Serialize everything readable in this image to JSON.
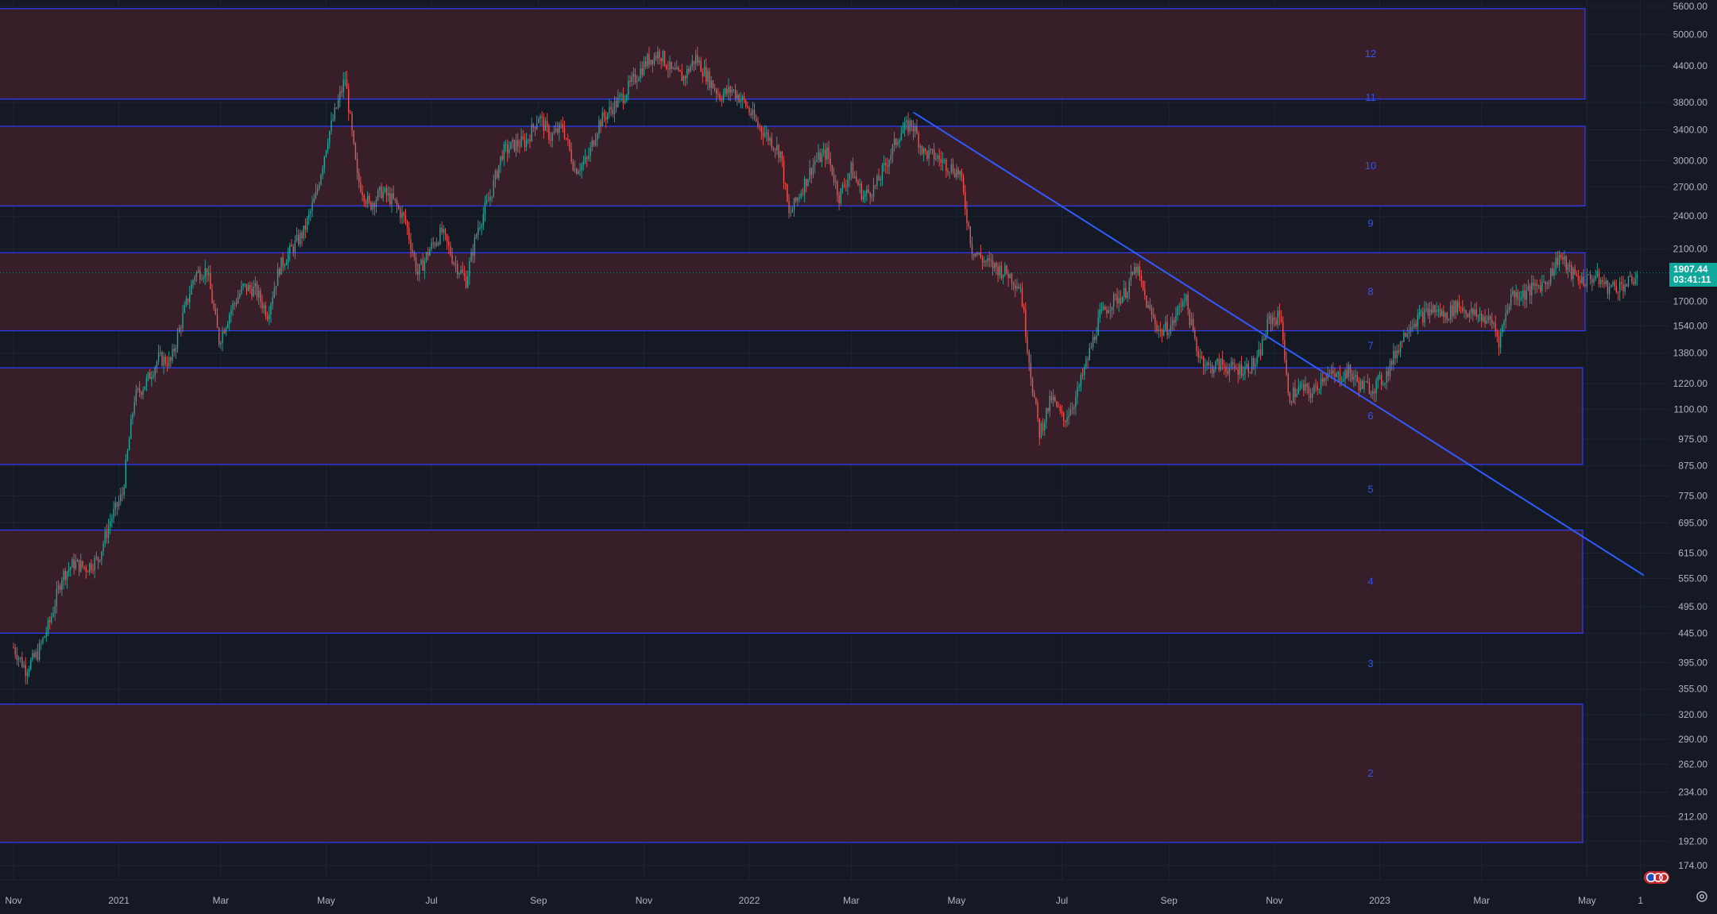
{
  "colors": {
    "background": "#151924",
    "grid": "#1f2433",
    "zone_fill": "#3c1f29",
    "zone_border": "#2f3cff",
    "zone_label": "#3552e8",
    "trendline": "#2f5cff",
    "candle_up": "#26a69a",
    "candle_down": "#ef5350",
    "axis_text": "#b2b5be",
    "last_price_bg": "#0fa89d"
  },
  "last_price": {
    "value": "1907.44",
    "countdown": "03:41:11"
  },
  "chart_data": {
    "type": "candlestick",
    "scale": "log",
    "y_ticks": [
      5600,
      5000,
      4400,
      3800,
      3400,
      3000,
      2700,
      2400,
      2100,
      1700,
      1540,
      1380,
      1220,
      1100,
      975,
      875,
      775,
      695,
      615,
      555,
      495,
      445,
      395,
      355,
      320,
      290,
      262,
      234,
      212,
      192,
      174
    ],
    "y_tick_labels": [
      "5600.00",
      "5000.00",
      "4400.00",
      "3800.00",
      "3400.00",
      "3000.00",
      "2700.00",
      "2400.00",
      "2100.00",
      "1700.00",
      "1540.00",
      "1380.00",
      "1220.00",
      "1100.00",
      "975.00",
      "875.00",
      "775.00",
      "695.00",
      "615.00",
      "555.00",
      "495.00",
      "445.00",
      "395.00",
      "355.00",
      "320.00",
      "290.00",
      "262.00",
      "234.00",
      "212.00",
      "192.00",
      "174.00"
    ],
    "x_ticks": [
      {
        "label": "Nov",
        "date": "2020-11-01"
      },
      {
        "label": "2021",
        "date": "2021-01-01"
      },
      {
        "label": "Mar",
        "date": "2021-03-01"
      },
      {
        "label": "May",
        "date": "2021-05-01"
      },
      {
        "label": "Jul",
        "date": "2021-07-01"
      },
      {
        "label": "Sep",
        "date": "2021-09-01"
      },
      {
        "label": "Nov",
        "date": "2021-11-01"
      },
      {
        "label": "2022",
        "date": "2022-01-01"
      },
      {
        "label": "Mar",
        "date": "2022-03-01"
      },
      {
        "label": "May",
        "date": "2022-05-01"
      },
      {
        "label": "Jul",
        "date": "2022-07-01"
      },
      {
        "label": "Sep",
        "date": "2022-09-01"
      },
      {
        "label": "Nov",
        "date": "2022-11-01"
      },
      {
        "label": "2023",
        "date": "2023-01-01"
      },
      {
        "label": "Mar",
        "date": "2023-03-01"
      },
      {
        "label": "May",
        "date": "2023-05-01"
      },
      {
        "label": "1",
        "date": "2023-06-01"
      }
    ],
    "x_range": [
      "2020-11-01",
      "2023-06-01"
    ],
    "zones": [
      {
        "label": "12",
        "low": 3850,
        "high": 5550
      },
      {
        "label": "10",
        "low": 2500,
        "high": 3450
      },
      {
        "label": "8",
        "low": 1510,
        "high": 2070
      },
      {
        "label": "6",
        "low": 880,
        "high": 1300
      },
      {
        "label": "4",
        "low": 445,
        "high": 675
      },
      {
        "label": "2",
        "low": 191,
        "high": 334
      }
    ],
    "gap_labels": [
      {
        "label": "11",
        "price": 3870
      },
      {
        "label": "9",
        "price": 2330
      },
      {
        "label": "7",
        "price": 1420
      },
      {
        "label": "5",
        "price": 795
      },
      {
        "label": "3",
        "price": 393
      }
    ],
    "trendline": {
      "start": {
        "date": "2022-04-06",
        "price": 3650
      },
      "end": {
        "date": "2023-06-03",
        "price": 562
      }
    },
    "price_path": [
      [
        "2020-11-01",
        420
      ],
      [
        "2020-11-08",
        385
      ],
      [
        "2020-11-15",
        410
      ],
      [
        "2020-11-22",
        465
      ],
      [
        "2020-11-29",
        560
      ],
      [
        "2020-12-06",
        590
      ],
      [
        "2020-12-13",
        580
      ],
      [
        "2020-12-20",
        600
      ],
      [
        "2020-12-27",
        700
      ],
      [
        "2021-01-03",
        780
      ],
      [
        "2021-01-10",
        1150
      ],
      [
        "2021-01-17",
        1230
      ],
      [
        "2021-01-24",
        1350
      ],
      [
        "2021-01-31",
        1330
      ],
      [
        "2021-02-07",
        1600
      ],
      [
        "2021-02-14",
        1900
      ],
      [
        "2021-02-21",
        1930
      ],
      [
        "2021-02-28",
        1450
      ],
      [
        "2021-03-07",
        1650
      ],
      [
        "2021-03-14",
        1800
      ],
      [
        "2021-03-21",
        1780
      ],
      [
        "2021-03-28",
        1620
      ],
      [
        "2021-04-04",
        1950
      ],
      [
        "2021-04-11",
        2100
      ],
      [
        "2021-04-18",
        2250
      ],
      [
        "2021-04-25",
        2600
      ],
      [
        "2021-05-02",
        3300
      ],
      [
        "2021-05-09",
        3900
      ],
      [
        "2021-05-12",
        4200
      ],
      [
        "2021-05-19",
        2800
      ],
      [
        "2021-05-26",
        2500
      ],
      [
        "2021-06-02",
        2650
      ],
      [
        "2021-06-09",
        2550
      ],
      [
        "2021-06-16",
        2350
      ],
      [
        "2021-06-23",
        1900
      ],
      [
        "2021-06-30",
        2100
      ],
      [
        "2021-07-07",
        2250
      ],
      [
        "2021-07-14",
        2000
      ],
      [
        "2021-07-21",
        1850
      ],
      [
        "2021-07-28",
        2300
      ],
      [
        "2021-08-04",
        2600
      ],
      [
        "2021-08-11",
        3100
      ],
      [
        "2021-08-18",
        3200
      ],
      [
        "2021-08-25",
        3250
      ],
      [
        "2021-09-01",
        3600
      ],
      [
        "2021-09-08",
        3300
      ],
      [
        "2021-09-15",
        3450
      ],
      [
        "2021-09-22",
        2900
      ],
      [
        "2021-09-29",
        3000
      ],
      [
        "2021-10-06",
        3500
      ],
      [
        "2021-10-13",
        3700
      ],
      [
        "2021-10-20",
        3900
      ],
      [
        "2021-10-27",
        4200
      ],
      [
        "2021-11-03",
        4500
      ],
      [
        "2021-11-10",
        4650
      ],
      [
        "2021-11-17",
        4300
      ],
      [
        "2021-11-24",
        4200
      ],
      [
        "2021-12-01",
        4550
      ],
      [
        "2021-12-08",
        4200
      ],
      [
        "2021-12-15",
        3900
      ],
      [
        "2021-12-22",
        4000
      ],
      [
        "2021-12-29",
        3800
      ],
      [
        "2022-01-05",
        3500
      ],
      [
        "2022-01-12",
        3300
      ],
      [
        "2022-01-19",
        3100
      ],
      [
        "2022-01-24",
        2400
      ],
      [
        "2022-02-01",
        2700
      ],
      [
        "2022-02-08",
        3000
      ],
      [
        "2022-02-15",
        3100
      ],
      [
        "2022-02-22",
        2600
      ],
      [
        "2022-03-01",
        2900
      ],
      [
        "2022-03-08",
        2600
      ],
      [
        "2022-03-15",
        2700
      ],
      [
        "2022-03-22",
        3000
      ],
      [
        "2022-03-29",
        3350
      ],
      [
        "2022-04-05",
        3500
      ],
      [
        "2022-04-12",
        3100
      ],
      [
        "2022-04-19",
        3050
      ],
      [
        "2022-04-26",
        2950
      ],
      [
        "2022-05-03",
        2850
      ],
      [
        "2022-05-10",
        2100
      ],
      [
        "2022-05-17",
        2000
      ],
      [
        "2022-05-24",
        1950
      ],
      [
        "2022-05-31",
        1900
      ],
      [
        "2022-06-07",
        1800
      ],
      [
        "2022-06-14",
        1200
      ],
      [
        "2022-06-18",
        1000
      ],
      [
        "2022-06-25",
        1150
      ],
      [
        "2022-07-02",
        1050
      ],
      [
        "2022-07-09",
        1150
      ],
      [
        "2022-07-16",
        1350
      ],
      [
        "2022-07-23",
        1600
      ],
      [
        "2022-07-30",
        1700
      ],
      [
        "2022-08-06",
        1750
      ],
      [
        "2022-08-13",
        1950
      ],
      [
        "2022-08-20",
        1650
      ],
      [
        "2022-08-27",
        1500
      ],
      [
        "2022-09-03",
        1550
      ],
      [
        "2022-09-10",
        1750
      ],
      [
        "2022-09-17",
        1400
      ],
      [
        "2022-09-24",
        1300
      ],
      [
        "2022-10-01",
        1320
      ],
      [
        "2022-10-08",
        1290
      ],
      [
        "2022-10-15",
        1300
      ],
      [
        "2022-10-22",
        1330
      ],
      [
        "2022-10-29",
        1580
      ],
      [
        "2022-11-05",
        1600
      ],
      [
        "2022-11-09",
        1150
      ],
      [
        "2022-11-16",
        1200
      ],
      [
        "2022-11-23",
        1170
      ],
      [
        "2022-11-30",
        1270
      ],
      [
        "2022-12-07",
        1250
      ],
      [
        "2022-12-14",
        1280
      ],
      [
        "2022-12-21",
        1210
      ],
      [
        "2022-12-28",
        1200
      ],
      [
        "2023-01-04",
        1250
      ],
      [
        "2023-01-11",
        1400
      ],
      [
        "2023-01-18",
        1550
      ],
      [
        "2023-01-25",
        1600
      ],
      [
        "2023-02-01",
        1650
      ],
      [
        "2023-02-08",
        1600
      ],
      [
        "2023-02-15",
        1680
      ],
      [
        "2023-02-22",
        1620
      ],
      [
        "2023-03-01",
        1600
      ],
      [
        "2023-03-08",
        1550
      ],
      [
        "2023-03-11",
        1450
      ],
      [
        "2023-03-18",
        1750
      ],
      [
        "2023-03-25",
        1750
      ],
      [
        "2023-04-01",
        1800
      ],
      [
        "2023-04-08",
        1850
      ],
      [
        "2023-04-15",
        2050
      ],
      [
        "2023-04-22",
        1900
      ],
      [
        "2023-04-29",
        1850
      ],
      [
        "2023-05-06",
        1880
      ],
      [
        "2023-05-13",
        1800
      ],
      [
        "2023-05-20",
        1810
      ],
      [
        "2023-05-27",
        1840
      ],
      [
        "2023-05-30",
        1907.44
      ]
    ]
  }
}
